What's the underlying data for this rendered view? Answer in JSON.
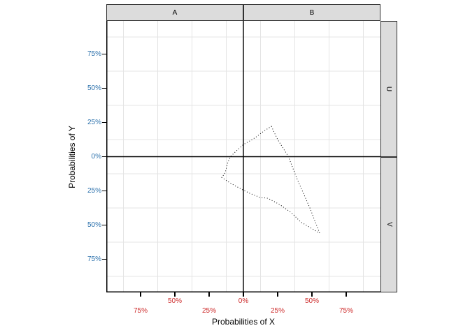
{
  "chart_data": {
    "type": "line",
    "subtype": "dotted-region-outline-in-2x2-facet-grid",
    "title": "",
    "legend": "none",
    "grid": "minor-gridlines-only",
    "facets": {
      "column_labels": [
        "A",
        "B"
      ],
      "row_labels": [
        "U",
        "V"
      ]
    },
    "x_axis": {
      "title": "Probabilities of X",
      "color": "#cd2a2a",
      "staggered_labels": true,
      "ticks": [
        {
          "label": "75%",
          "pct": -75,
          "row": 2
        },
        {
          "label": "50%",
          "pct": -50,
          "row": 1
        },
        {
          "label": "25%",
          "pct": -25,
          "row": 2
        },
        {
          "label": "0%",
          "pct": 0,
          "row": 1
        },
        {
          "label": "25%",
          "pct": 25,
          "row": 2
        },
        {
          "label": "50%",
          "pct": 50,
          "row": 1
        },
        {
          "label": "75%",
          "pct": 75,
          "row": 2
        }
      ]
    },
    "y_axis": {
      "title": "Probabilities of Y",
      "color": "#2d72ad",
      "ticks": [
        {
          "label": "75%",
          "pct": 75
        },
        {
          "label": "50%",
          "pct": 50
        },
        {
          "label": "25%",
          "pct": 25
        },
        {
          "label": "0%",
          "pct": 0
        },
        {
          "label": "25%",
          "pct": -25
        },
        {
          "label": "50%",
          "pct": -50
        },
        {
          "label": "75%",
          "pct": -75
        }
      ]
    },
    "panel_range_pct": {
      "x": [
        -100,
        100
      ],
      "y": [
        -100,
        100
      ]
    },
    "minor_gridlines_pct": [
      -87.5,
      -62.5,
      -37.5,
      -12.5,
      12.5,
      37.5,
      62.5,
      87.5
    ],
    "reference_lines_pct": {
      "x": 0,
      "y": 0
    },
    "region_outline_pct": [
      [
        20.4,
        22.2
      ],
      [
        25.0,
        12.5
      ],
      [
        32.7,
        0.3
      ],
      [
        39.3,
        -16.6
      ],
      [
        48.5,
        -37.5
      ],
      [
        55.6,
        -55.9
      ],
      [
        49.5,
        -52.3
      ],
      [
        41.8,
        -47.7
      ],
      [
        35.2,
        -41.1
      ],
      [
        26.5,
        -35.0
      ],
      [
        17.9,
        -30.4
      ],
      [
        12.2,
        -29.8
      ],
      [
        5.1,
        -27.0
      ],
      [
        -1.5,
        -23.7
      ],
      [
        -7.1,
        -20.7
      ],
      [
        -12.2,
        -17.6
      ],
      [
        -15.8,
        -15.1
      ],
      [
        -15.0,
        -14.2
      ],
      [
        -13.3,
        -11.8
      ],
      [
        -11.2,
        -3.8
      ],
      [
        -9.2,
        0.3
      ],
      [
        -5.6,
        3.8
      ],
      [
        0.0,
        8.9
      ],
      [
        4.6,
        11.5
      ],
      [
        8.7,
        14.0
      ],
      [
        14.8,
        18.6
      ]
    ]
  },
  "styles": {
    "grid_color": "#e4e4e4",
    "strip_fill": "#dcdcdc",
    "strip_border": "#303030",
    "axis_line_color": "#000000",
    "outline_color": "#000000"
  }
}
